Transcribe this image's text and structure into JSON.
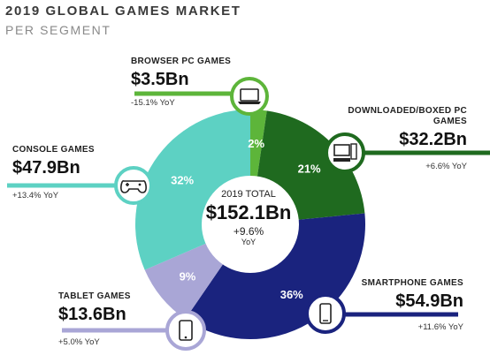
{
  "header": {
    "title": "2019 GLOBAL GAMES MARKET",
    "subtitle": "PER SEGMENT"
  },
  "center": {
    "label": "2019 TOTAL",
    "value": "$152.1Bn",
    "yoy": "+9.6%",
    "yoy_unit": "YoY"
  },
  "chart_data": {
    "type": "pie",
    "title": "2019 GLOBAL GAMES MARKET",
    "subtitle": "PER SEGMENT",
    "total": "$152.1Bn",
    "total_growth": "+9.6% YoY",
    "segments": [
      {
        "name": "BROWSER PC GAMES",
        "label": "2%",
        "value": 3.5,
        "value_label": "$3.5Bn",
        "yoy": "-15.1% YoY",
        "color": "#5db53a",
        "icon": "laptop-icon"
      },
      {
        "name": "DOWNLOADED/BOXED PC GAMES",
        "label": "21%",
        "value": 32.2,
        "value_label": "$32.2Bn",
        "yoy": "+6.6% YoY",
        "color": "#1f6a1f",
        "icon": "desktop-pc-icon"
      },
      {
        "name": "SMARTPHONE GAMES",
        "label": "36%",
        "value": 54.9,
        "value_label": "$54.9Bn",
        "yoy": "+11.6% YoY",
        "color": "#1a237e",
        "icon": "smartphone-icon"
      },
      {
        "name": "TABLET GAMES",
        "label": "9%",
        "value": 13.6,
        "value_label": "$13.6Bn",
        "yoy": "+5.0% YoY",
        "color": "#a9a6d6",
        "icon": "tablet-icon"
      },
      {
        "name": "CONSOLE GAMES",
        "label": "32%",
        "value": 47.9,
        "value_label": "$47.9Bn",
        "yoy": "+13.4% YoY",
        "color": "#5dd1c3",
        "icon": "gamepad-icon"
      }
    ]
  }
}
